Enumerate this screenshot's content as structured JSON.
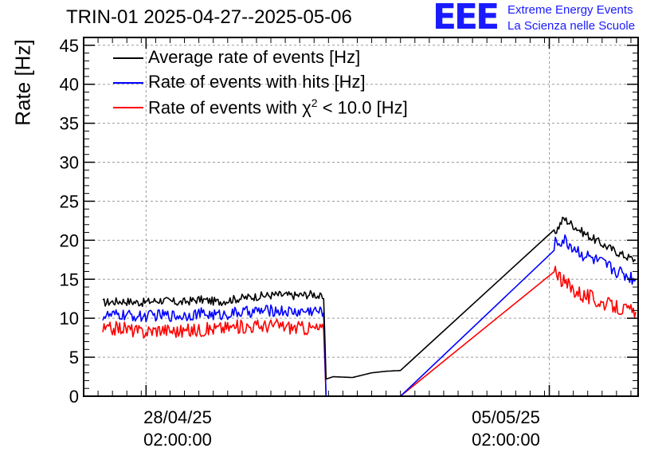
{
  "chart_data": {
    "type": "line",
    "title": "TRIN-01 2025-04-27--2025-05-06",
    "ylabel": "Rate [Hz]",
    "xlabel": "",
    "ylim": [
      0,
      46
    ],
    "y_ticks": [
      0,
      5,
      10,
      15,
      20,
      25,
      30,
      35,
      40,
      45
    ],
    "x_range": [
      "2025-04-27T00:00:00",
      "2025-05-06T15:00:00"
    ],
    "x_tick_labels": [
      {
        "date": "28/04/25",
        "time": "02:00:00",
        "x": "2025-04-28T02:00:00"
      },
      {
        "date": "05/05/25",
        "time": "02:00:00",
        "x": "2025-05-05T02:00:00"
      }
    ],
    "grid": true,
    "legend_position": "top-left",
    "legend": [
      {
        "text": "Average rate of events [Hz]",
        "color": "#000000"
      },
      {
        "text": "Rate of events with hits [Hz]",
        "color": "#0000ff"
      },
      {
        "text_prefix": "Rate of events with ",
        "chi": "χ",
        "sup": "2",
        "text_suffix": " < 10.0 [Hz]",
        "color": "#ff0000"
      }
    ],
    "series": [
      {
        "name": "Average rate of events [Hz]",
        "color": "#000000",
        "points": [
          [
            "2025-04-27T08:00:00",
            12.0
          ],
          [
            "2025-04-27T16:00:00",
            12.2
          ],
          [
            "2025-04-28T00:00:00",
            12.0
          ],
          [
            "2025-04-28T08:00:00",
            12.3
          ],
          [
            "2025-04-28T16:00:00",
            12.0
          ],
          [
            "2025-04-29T00:00:00",
            12.4
          ],
          [
            "2025-04-29T08:00:00",
            12.1
          ],
          [
            "2025-04-29T16:00:00",
            12.5
          ],
          [
            "2025-04-30T00:00:00",
            12.8
          ],
          [
            "2025-04-30T08:00:00",
            13.0
          ],
          [
            "2025-04-30T16:00:00",
            12.9
          ],
          [
            "2025-05-01T00:00:00",
            13.1
          ],
          [
            "2025-05-01T04:00:00",
            12.5
          ],
          [
            "2025-05-01T05:00:00",
            2.2
          ],
          [
            "2025-05-01T08:00:00",
            2.5
          ],
          [
            "2025-05-01T16:00:00",
            2.4
          ],
          [
            "2025-05-02T00:00:00",
            3.0
          ],
          [
            "2025-05-02T06:00:00",
            3.2
          ],
          [
            "2025-05-02T12:00:00",
            3.3
          ],
          [
            "2025-05-05T04:00:00",
            20.8
          ],
          [
            "2025-05-05T08:00:00",
            22.8
          ],
          [
            "2025-05-05T16:00:00",
            21.0
          ],
          [
            "2025-05-06T00:00:00",
            19.5
          ],
          [
            "2025-05-06T08:00:00",
            18.2
          ],
          [
            "2025-05-06T14:00:00",
            17.4
          ]
        ]
      },
      {
        "name": "Rate of events with hits [Hz]",
        "color": "#0000ff",
        "points": [
          [
            "2025-04-27T08:00:00",
            10.3
          ],
          [
            "2025-04-27T16:00:00",
            10.4
          ],
          [
            "2025-04-28T00:00:00",
            10.2
          ],
          [
            "2025-04-28T08:00:00",
            10.4
          ],
          [
            "2025-04-28T16:00:00",
            10.3
          ],
          [
            "2025-04-29T00:00:00",
            10.6
          ],
          [
            "2025-04-29T08:00:00",
            10.4
          ],
          [
            "2025-04-29T16:00:00",
            10.7
          ],
          [
            "2025-04-30T00:00:00",
            10.9
          ],
          [
            "2025-04-30T08:00:00",
            11.0
          ],
          [
            "2025-04-30T16:00:00",
            10.8
          ],
          [
            "2025-05-01T00:00:00",
            11.0
          ],
          [
            "2025-05-01T04:00:00",
            10.7
          ],
          [
            "2025-05-01T05:00:00",
            0.0
          ],
          [
            "2025-05-02T12:00:00",
            0.0
          ],
          [
            "2025-05-05T04:00:00",
            19.5
          ],
          [
            "2025-05-05T08:00:00",
            20.0
          ],
          [
            "2025-05-05T16:00:00",
            18.2
          ],
          [
            "2025-05-06T00:00:00",
            17.0
          ],
          [
            "2025-05-06T08:00:00",
            15.8
          ],
          [
            "2025-05-06T14:00:00",
            15.0
          ]
        ]
      },
      {
        "name": "Rate of events with χ2 < 10.0 [Hz]",
        "color": "#ff0000",
        "points": [
          [
            "2025-04-27T08:00:00",
            8.5
          ],
          [
            "2025-04-27T16:00:00",
            8.8
          ],
          [
            "2025-04-28T00:00:00",
            8.2
          ],
          [
            "2025-04-28T08:00:00",
            8.6
          ],
          [
            "2025-04-28T16:00:00",
            8.3
          ],
          [
            "2025-04-29T00:00:00",
            8.5
          ],
          [
            "2025-04-29T08:00:00",
            8.7
          ],
          [
            "2025-04-29T16:00:00",
            8.9
          ],
          [
            "2025-04-30T00:00:00",
            9.0
          ],
          [
            "2025-04-30T08:00:00",
            9.1
          ],
          [
            "2025-04-30T16:00:00",
            8.8
          ],
          [
            "2025-05-01T00:00:00",
            8.7
          ],
          [
            "2025-05-01T04:00:00",
            8.5
          ],
          [
            "2025-05-01T05:00:00",
            0.0
          ],
          [
            "2025-05-02T12:00:00",
            0.0
          ],
          [
            "2025-05-05T04:00:00",
            16.8
          ],
          [
            "2025-05-05T08:00:00",
            14.5
          ],
          [
            "2025-05-05T16:00:00",
            13.0
          ],
          [
            "2025-05-06T00:00:00",
            12.0
          ],
          [
            "2025-05-06T08:00:00",
            11.2
          ],
          [
            "2025-05-06T14:00:00",
            10.8
          ]
        ]
      }
    ]
  },
  "logo": {
    "mark": "EEE",
    "line1": "Extreme Energy Events",
    "line2": "La Scienza nelle Scuole"
  }
}
